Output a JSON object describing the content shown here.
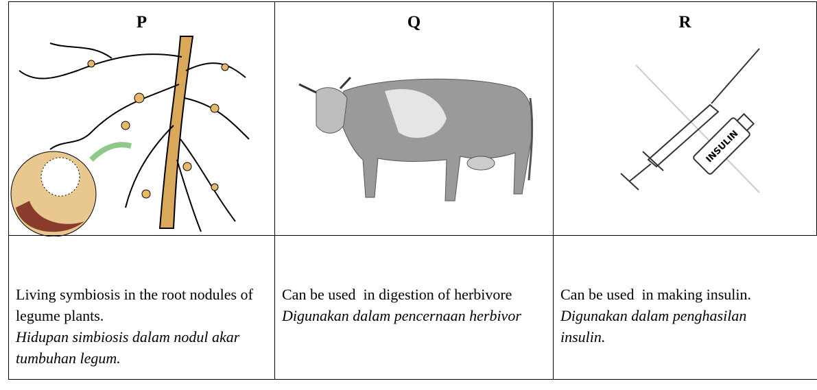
{
  "table": {
    "columns": [
      {
        "header": "P",
        "english": "Living symbiosis in the root nodules of legume plants.",
        "malay": "Hidupan simbiosis dalam nodul akar tumbuhan legum."
      },
      {
        "header": "Q",
        "english": "Can be used  in digestion of herbivore",
        "malay": "Digunakan dalam pencernaan herbivor"
      },
      {
        "header": "R",
        "english": "Can be used  in making insulin.",
        "malay": "Digunakan dalam penghasilan insulin.",
        "image_text": "INSULIN"
      }
    ]
  }
}
